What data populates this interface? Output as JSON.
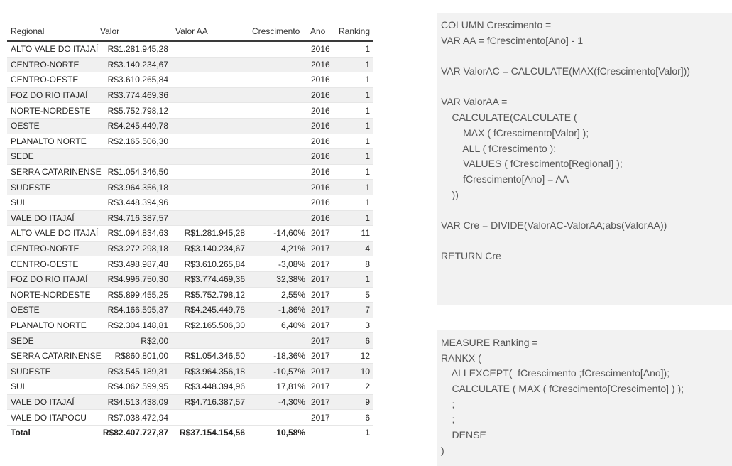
{
  "table": {
    "headers": [
      "Regional",
      "Valor",
      "Valor AA",
      "Crescimento",
      "Ano",
      "Ranking"
    ],
    "rows": [
      [
        "ALTO VALE DO ITAJAÍ",
        "R$1.281.945,28",
        "",
        "",
        "2016",
        "1"
      ],
      [
        "CENTRO-NORTE",
        "R$3.140.234,67",
        "",
        "",
        "2016",
        "1"
      ],
      [
        "CENTRO-OESTE",
        "R$3.610.265,84",
        "",
        "",
        "2016",
        "1"
      ],
      [
        "FOZ DO RIO ITAJAÍ",
        "R$3.774.469,36",
        "",
        "",
        "2016",
        "1"
      ],
      [
        "NORTE-NORDESTE",
        "R$5.752.798,12",
        "",
        "",
        "2016",
        "1"
      ],
      [
        "OESTE",
        "R$4.245.449,78",
        "",
        "",
        "2016",
        "1"
      ],
      [
        "PLANALTO NORTE",
        "R$2.165.506,30",
        "",
        "",
        "2016",
        "1"
      ],
      [
        "SEDE",
        "",
        "",
        "",
        "2016",
        "1"
      ],
      [
        "SERRA CATARINENSE",
        "R$1.054.346,50",
        "",
        "",
        "2016",
        "1"
      ],
      [
        "SUDESTE",
        "R$3.964.356,18",
        "",
        "",
        "2016",
        "1"
      ],
      [
        "SUL",
        "R$3.448.394,96",
        "",
        "",
        "2016",
        "1"
      ],
      [
        "VALE DO ITAJAÍ",
        "R$4.716.387,57",
        "",
        "",
        "2016",
        "1"
      ],
      [
        "ALTO VALE DO ITAJAÍ",
        "R$1.094.834,63",
        "R$1.281.945,28",
        "-14,60%",
        "2017",
        "11"
      ],
      [
        "CENTRO-NORTE",
        "R$3.272.298,18",
        "R$3.140.234,67",
        "4,21%",
        "2017",
        "4"
      ],
      [
        "CENTRO-OESTE",
        "R$3.498.987,48",
        "R$3.610.265,84",
        "-3,08%",
        "2017",
        "8"
      ],
      [
        "FOZ DO RIO ITAJAÍ",
        "R$4.996.750,30",
        "R$3.774.469,36",
        "32,38%",
        "2017",
        "1"
      ],
      [
        "NORTE-NORDESTE",
        "R$5.899.455,25",
        "R$5.752.798,12",
        "2,55%",
        "2017",
        "5"
      ],
      [
        "OESTE",
        "R$4.166.595,37",
        "R$4.245.449,78",
        "-1,86%",
        "2017",
        "7"
      ],
      [
        "PLANALTO NORTE",
        "R$2.304.148,81",
        "R$2.165.506,30",
        "6,40%",
        "2017",
        "3"
      ],
      [
        "SEDE",
        "R$2,00",
        "",
        "",
        "2017",
        "6"
      ],
      [
        "SERRA CATARINENSE",
        "R$860.801,00",
        "R$1.054.346,50",
        "-18,36%",
        "2017",
        "12"
      ],
      [
        "SUDESTE",
        "R$3.545.189,31",
        "R$3.964.356,18",
        "-10,57%",
        "2017",
        "10"
      ],
      [
        "SUL",
        "R$4.062.599,95",
        "R$3.448.394,96",
        "17,81%",
        "2017",
        "2"
      ],
      [
        "VALE DO ITAJAÍ",
        "R$4.513.438,09",
        "R$4.716.387,57",
        "-4,30%",
        "2017",
        "9"
      ],
      [
        "VALE DO ITAPOCU",
        "R$7.038.472,94",
        "",
        "",
        "2017",
        "6"
      ]
    ],
    "total": [
      "Total",
      "R$82.407.727,87",
      "R$37.154.154,56",
      "10,58%",
      "",
      "1"
    ]
  },
  "code_block_1": [
    "COLUMN Crescimento =",
    "VAR AA = fCrescimento[Ano] - 1",
    "",
    "VAR ValorAC = CALCULATE(MAX(fCrescimento[Valor]))",
    "",
    "VAR ValorAA =",
    "    CALCULATE(CALCULATE (",
    "        MAX ( fCrescimento[Valor] );",
    "        ALL ( fCrescimento );",
    "        VALUES ( fCrescimento[Regional] );",
    "        fCrescimento[Ano] = AA",
    "    ))",
    "",
    "VAR Cre = DIVIDE(ValorAC-ValorAA;abs(ValorAA))",
    "",
    "RETURN Cre"
  ],
  "code_block_2": [
    "MEASURE Ranking =",
    "RANKX (",
    "    ALLEXCEPT(  fCrescimento ;fCrescimento[Ano]);",
    "    CALCULATE ( MAX ( fCrescimento[Crescimento] ) );",
    "    ;",
    "    ;",
    "    DENSE",
    ")"
  ]
}
